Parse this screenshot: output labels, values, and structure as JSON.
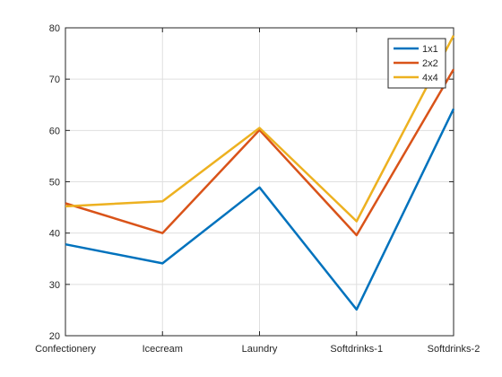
{
  "chart_data": {
    "type": "line",
    "title": "",
    "xlabel": "",
    "ylabel": "",
    "categories": [
      "Confectionery",
      "Icecream",
      "Laundry",
      "Softdrinks-1",
      "Softdrinks-2"
    ],
    "ylim": [
      20,
      80
    ],
    "yticks": [
      20,
      30,
      40,
      50,
      60,
      70,
      80
    ],
    "grid": true,
    "legend_position": "top-right",
    "series": [
      {
        "name": "1x1",
        "color": "#0072BD",
        "values": [
          37.8,
          34.1,
          48.9,
          25.1,
          64.2
        ]
      },
      {
        "name": "2x2",
        "color": "#D95319",
        "values": [
          45.8,
          40.0,
          60.1,
          39.6,
          71.9
        ]
      },
      {
        "name": "4x4",
        "color": "#EDB120",
        "values": [
          45.2,
          46.2,
          60.5,
          42.3,
          78.5
        ]
      }
    ]
  }
}
